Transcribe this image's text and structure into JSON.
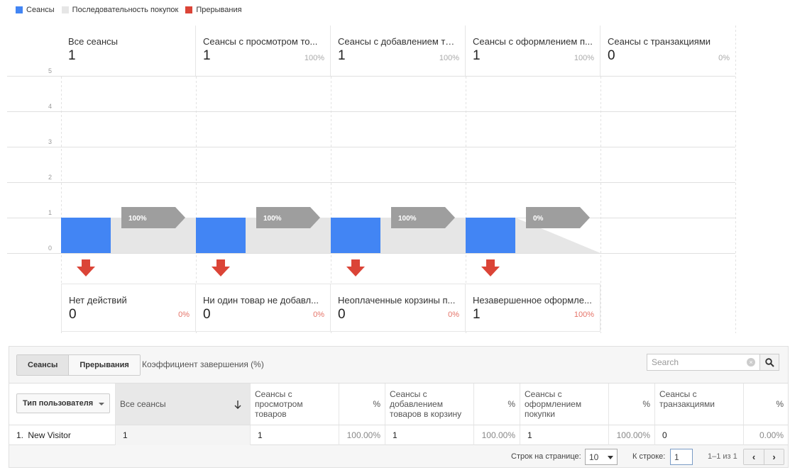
{
  "legend": [
    {
      "label": "Сеансы",
      "color": "#4285f4"
    },
    {
      "label": "Последовательность покупок",
      "color": "#e6e6e6"
    },
    {
      "label": "Прерывания",
      "color": "#db4437"
    }
  ],
  "chart_data": {
    "type": "bar",
    "y_ticks": [
      "5",
      "4",
      "3",
      "2",
      "1",
      "0"
    ],
    "ylim": [
      0,
      5
    ],
    "stages": [
      {
        "name": "Все сеансы",
        "value": "1",
        "pct": "",
        "sessions": 1,
        "flow_pct_label": "100%",
        "flow_pct": 100
      },
      {
        "name": "Сеансы с просмотром то...",
        "value": "1",
        "pct": "100%",
        "sessions": 1,
        "flow_pct_label": "100%",
        "flow_pct": 100
      },
      {
        "name": "Сеансы с добавлением то...",
        "value": "1",
        "pct": "100%",
        "sessions": 1,
        "flow_pct_label": "100%",
        "flow_pct": 100
      },
      {
        "name": "Сеансы с оформлением п...",
        "value": "1",
        "pct": "100%",
        "sessions": 1,
        "flow_pct_label": "0%",
        "flow_pct": 0
      },
      {
        "name": "Сеансы с транзакциями",
        "value": "0",
        "pct": "0%",
        "sessions": 0
      }
    ],
    "dropoffs": [
      {
        "name": "Нет действий",
        "value": "0",
        "pct": "0%"
      },
      {
        "name": "Ни один товар не добавл...",
        "value": "0",
        "pct": "0%"
      },
      {
        "name": "Неоплаченные корзины п...",
        "value": "0",
        "pct": "0%"
      },
      {
        "name": "Незавершенное оформле...",
        "value": "1",
        "pct": "100%"
      }
    ]
  },
  "toolbar": {
    "seg_sessions": "Сеансы",
    "seg_abandon": "Прерывания",
    "completion_label": "Коэффициент завершения (%)",
    "search_placeholder": "Search"
  },
  "table": {
    "dimension_label": "Тип пользователя",
    "headers": [
      "Все сеансы",
      "Сеансы с просмотром товаров",
      "%",
      "Сеансы с добавлением товаров в корзину",
      "%",
      "Сеансы с оформлением покупки",
      "%",
      "Сеансы с транзакциями",
      "%"
    ],
    "rows": [
      {
        "index": "1.",
        "name": "New Visitor",
        "cells": [
          "1",
          "1",
          "100.00%",
          "1",
          "100.00%",
          "1",
          "100.00%",
          "0",
          "0.00%"
        ]
      }
    ]
  },
  "footer": {
    "rows_label": "Строк на странице:",
    "rows_value": "10",
    "goto_label": "К строке:",
    "goto_value": "1",
    "range": "1–1 из 1"
  }
}
